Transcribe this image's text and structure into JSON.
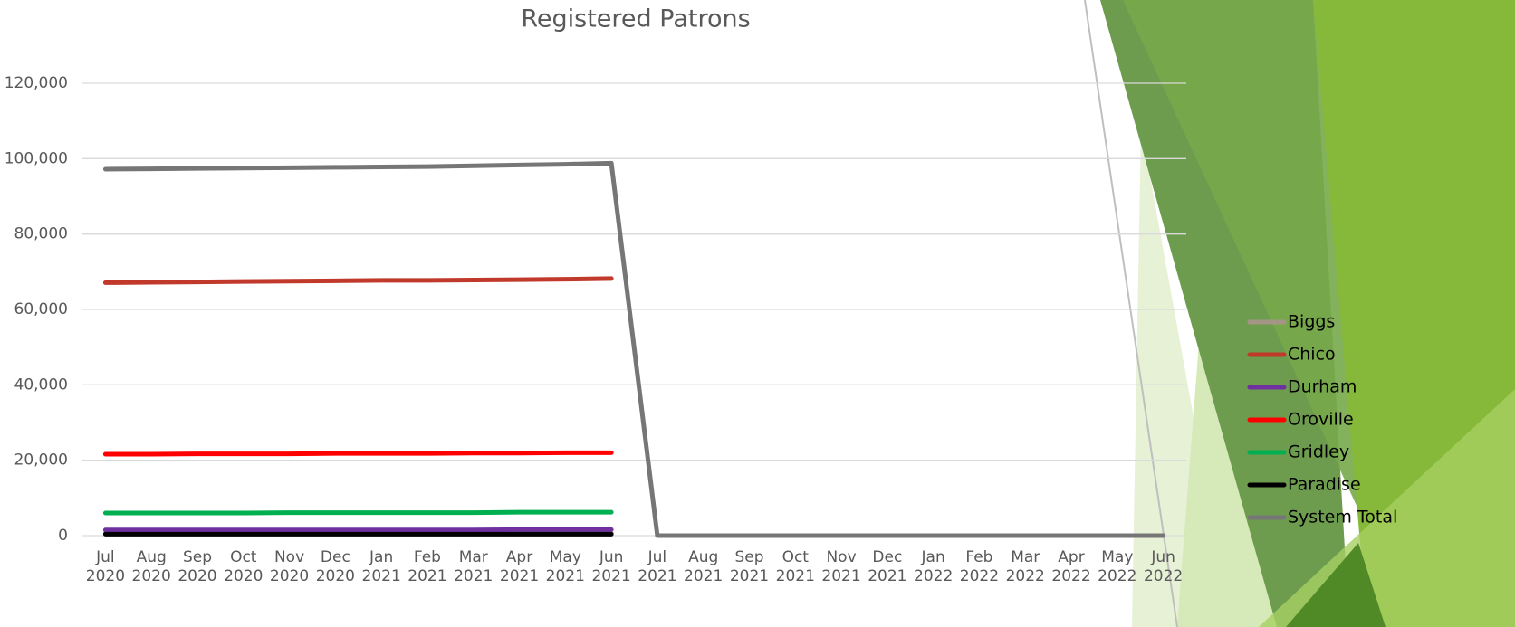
{
  "chart_data": {
    "type": "line",
    "title": "Registered Patrons",
    "categories": [
      "Jul 2020",
      "Aug 2020",
      "Sep 2020",
      "Oct 2020",
      "Nov 2020",
      "Dec 2020",
      "Jan 2021",
      "Feb 2021",
      "Mar 2021",
      "Apr 2021",
      "May 2021",
      "Jun 2021",
      "Jul 2021",
      "Aug 2021",
      "Sep 2021",
      "Oct 2021",
      "Nov 2021",
      "Dec 2021",
      "Jan 2022",
      "Feb 2022",
      "Mar 2022",
      "Apr 2022",
      "May 2022",
      "Jun 2022"
    ],
    "series": [
      {
        "name": "Biggs",
        "color": "#a49584",
        "values": [
          600,
          600,
          600,
          600,
          600,
          600,
          600,
          600,
          600,
          600,
          600,
          600,
          null,
          null,
          null,
          null,
          null,
          null,
          null,
          null,
          null,
          null,
          null,
          null
        ]
      },
      {
        "name": "Chico",
        "color": "#c0392b",
        "values": [
          67100,
          67200,
          67300,
          67400,
          67500,
          67600,
          67700,
          67700,
          67800,
          67900,
          68000,
          68200,
          null,
          null,
          null,
          null,
          null,
          null,
          null,
          null,
          null,
          null,
          null,
          null
        ]
      },
      {
        "name": "Durham",
        "color": "#7030a0",
        "values": [
          1500,
          1500,
          1500,
          1500,
          1500,
          1500,
          1500,
          1500,
          1500,
          1600,
          1600,
          1600,
          null,
          null,
          null,
          null,
          null,
          null,
          null,
          null,
          null,
          null,
          null,
          null
        ]
      },
      {
        "name": "Oroville",
        "color": "#ff0000",
        "values": [
          21600,
          21600,
          21700,
          21700,
          21700,
          21800,
          21800,
          21800,
          21900,
          21900,
          22000,
          22000,
          null,
          null,
          null,
          null,
          null,
          null,
          null,
          null,
          null,
          null,
          null,
          null
        ]
      },
      {
        "name": "Gridley",
        "color": "#00b050",
        "values": [
          6000,
          6000,
          6000,
          6000,
          6100,
          6100,
          6100,
          6100,
          6100,
          6200,
          6200,
          6200,
          null,
          null,
          null,
          null,
          null,
          null,
          null,
          null,
          null,
          null,
          null,
          null
        ]
      },
      {
        "name": "Paradise",
        "color": "#000000",
        "values": [
          400,
          400,
          400,
          400,
          400,
          400,
          400,
          400,
          400,
          400,
          400,
          400,
          null,
          null,
          null,
          null,
          null,
          null,
          null,
          null,
          null,
          null,
          null,
          null
        ]
      },
      {
        "name": "System Total",
        "color": "#767676",
        "values": [
          97200,
          97300,
          97400,
          97500,
          97600,
          97700,
          97800,
          97900,
          98100,
          98300,
          98500,
          98800,
          0,
          0,
          0,
          0,
          0,
          0,
          0,
          0,
          0,
          0,
          0,
          0
        ]
      }
    ],
    "ylim": [
      0,
      120000
    ],
    "yticks": [
      0,
      {
        "value": 20000,
        "label": "20,000"
      },
      {
        "value": 40000,
        "label": "40,000"
      },
      {
        "value": 60000,
        "label": "60,000"
      },
      {
        "value": 80000,
        "label": "80,000"
      },
      {
        "value": 100000,
        "label": "100,000"
      },
      {
        "value": 120000,
        "label": "120,000"
      }
    ],
    "grid": true,
    "legend": "right"
  }
}
